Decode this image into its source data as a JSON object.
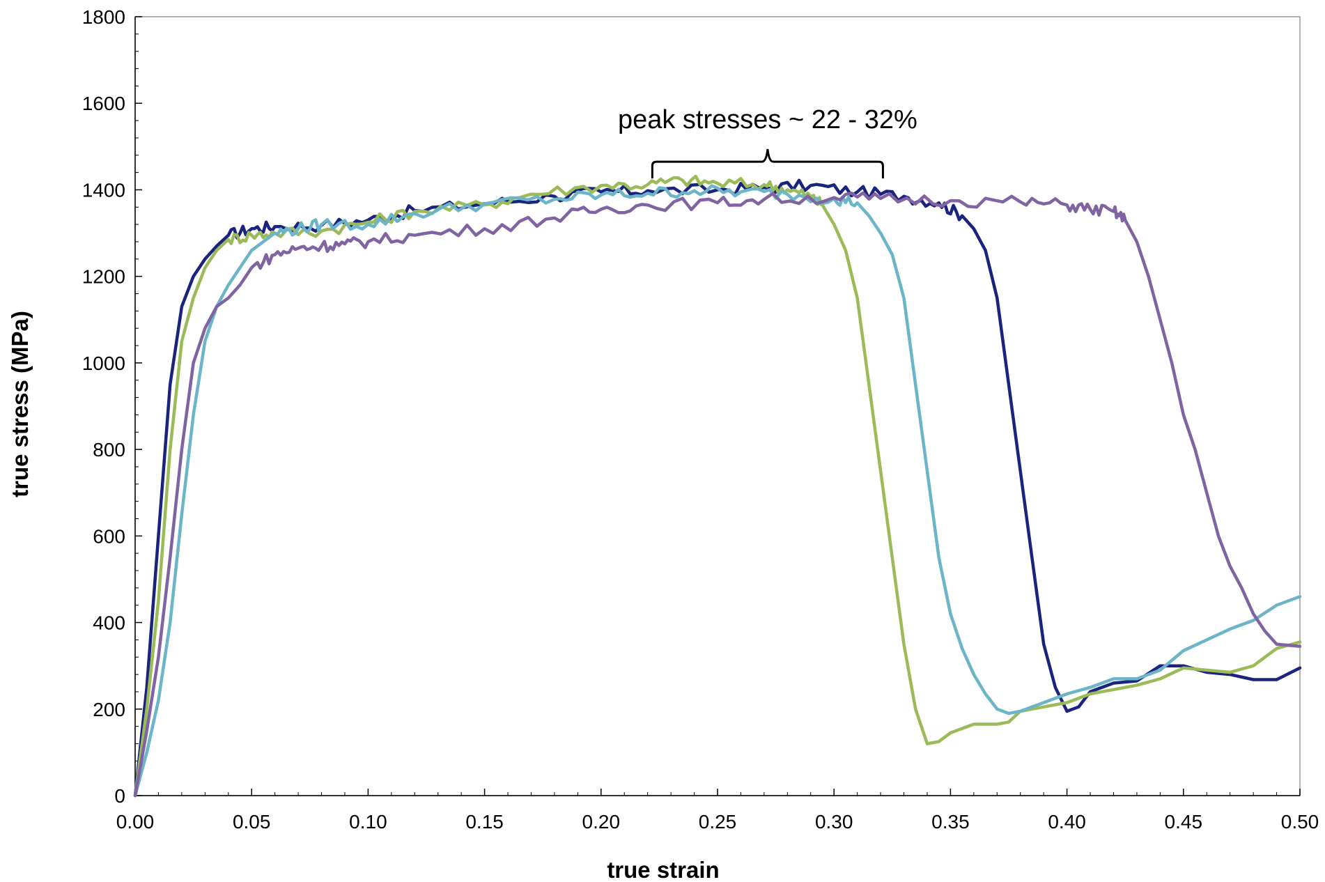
{
  "chart_data": {
    "type": "line",
    "xlabel": "true strain",
    "ylabel": "true stress (MPa)",
    "xlim": [
      0,
      0.5
    ],
    "ylim": [
      0,
      1800
    ],
    "x_ticks": [
      "0.00",
      "0.05",
      "0.10",
      "0.15",
      "0.20",
      "0.25",
      "0.30",
      "0.35",
      "0.40",
      "0.45",
      "0.50"
    ],
    "y_ticks": [
      "0",
      "200",
      "400",
      "600",
      "800",
      "1000",
      "1200",
      "1400",
      "1600",
      "1800"
    ],
    "grid": false,
    "legend": "none",
    "annotation": {
      "text": "peak stresses  ~ 22 - 32%",
      "bracket_x_range": [
        0.222,
        0.321
      ],
      "bracket_y": 1465
    },
    "series": [
      {
        "color": "#1a237e",
        "points": [
          [
            0,
            0
          ],
          [
            0.005,
            250
          ],
          [
            0.01,
            600
          ],
          [
            0.015,
            950
          ],
          [
            0.02,
            1130
          ],
          [
            0.025,
            1200
          ],
          [
            0.03,
            1240
          ],
          [
            0.035,
            1270
          ],
          [
            0.04,
            1295
          ],
          [
            0.05,
            1310
          ],
          [
            0.06,
            1315
          ],
          [
            0.08,
            1318
          ],
          [
            0.1,
            1330
          ],
          [
            0.12,
            1352
          ],
          [
            0.15,
            1368
          ],
          [
            0.18,
            1385
          ],
          [
            0.2,
            1395
          ],
          [
            0.22,
            1398
          ],
          [
            0.25,
            1400
          ],
          [
            0.27,
            1405
          ],
          [
            0.29,
            1410
          ],
          [
            0.31,
            1395
          ],
          [
            0.33,
            1385
          ],
          [
            0.345,
            1370
          ],
          [
            0.355,
            1340
          ],
          [
            0.36,
            1310
          ],
          [
            0.365,
            1260
          ],
          [
            0.37,
            1150
          ],
          [
            0.375,
            950
          ],
          [
            0.38,
            750
          ],
          [
            0.385,
            550
          ],
          [
            0.39,
            350
          ],
          [
            0.395,
            250
          ],
          [
            0.4,
            195
          ],
          [
            0.405,
            205
          ],
          [
            0.41,
            240
          ],
          [
            0.42,
            260
          ],
          [
            0.43,
            265
          ],
          [
            0.44,
            300
          ],
          [
            0.45,
            300
          ],
          [
            0.46,
            285
          ],
          [
            0.47,
            280
          ],
          [
            0.48,
            268
          ],
          [
            0.49,
            268
          ],
          [
            0.5,
            295
          ]
        ]
      },
      {
        "color": "#9bbb59",
        "points": [
          [
            0,
            0
          ],
          [
            0.005,
            200
          ],
          [
            0.01,
            450
          ],
          [
            0.015,
            800
          ],
          [
            0.02,
            1050
          ],
          [
            0.025,
            1150
          ],
          [
            0.03,
            1220
          ],
          [
            0.035,
            1260
          ],
          [
            0.04,
            1285
          ],
          [
            0.05,
            1295
          ],
          [
            0.06,
            1300
          ],
          [
            0.08,
            1305
          ],
          [
            0.1,
            1325
          ],
          [
            0.12,
            1350
          ],
          [
            0.15,
            1365
          ],
          [
            0.17,
            1390
          ],
          [
            0.2,
            1410
          ],
          [
            0.22,
            1412
          ],
          [
            0.235,
            1422
          ],
          [
            0.25,
            1415
          ],
          [
            0.27,
            1412
          ],
          [
            0.28,
            1400
          ],
          [
            0.29,
            1385
          ],
          [
            0.295,
            1365
          ],
          [
            0.3,
            1320
          ],
          [
            0.305,
            1260
          ],
          [
            0.31,
            1150
          ],
          [
            0.315,
            950
          ],
          [
            0.32,
            750
          ],
          [
            0.325,
            550
          ],
          [
            0.33,
            350
          ],
          [
            0.335,
            200
          ],
          [
            0.34,
            120
          ],
          [
            0.345,
            125
          ],
          [
            0.35,
            145
          ],
          [
            0.36,
            165
          ],
          [
            0.37,
            165
          ],
          [
            0.375,
            170
          ],
          [
            0.38,
            195
          ],
          [
            0.39,
            205
          ],
          [
            0.4,
            215
          ],
          [
            0.41,
            235
          ],
          [
            0.42,
            245
          ],
          [
            0.43,
            255
          ],
          [
            0.44,
            270
          ],
          [
            0.45,
            295
          ],
          [
            0.46,
            290
          ],
          [
            0.47,
            285
          ],
          [
            0.48,
            300
          ],
          [
            0.49,
            340
          ],
          [
            0.5,
            355
          ]
        ]
      },
      {
        "color": "#6cb4c8",
        "points": [
          [
            0,
            0
          ],
          [
            0.005,
            100
          ],
          [
            0.01,
            220
          ],
          [
            0.015,
            400
          ],
          [
            0.02,
            650
          ],
          [
            0.025,
            880
          ],
          [
            0.03,
            1050
          ],
          [
            0.035,
            1130
          ],
          [
            0.04,
            1180
          ],
          [
            0.045,
            1220
          ],
          [
            0.05,
            1260
          ],
          [
            0.06,
            1300
          ],
          [
            0.07,
            1310
          ],
          [
            0.08,
            1320
          ],
          [
            0.1,
            1320
          ],
          [
            0.12,
            1345
          ],
          [
            0.15,
            1368
          ],
          [
            0.18,
            1378
          ],
          [
            0.2,
            1388
          ],
          [
            0.22,
            1392
          ],
          [
            0.24,
            1398
          ],
          [
            0.26,
            1395
          ],
          [
            0.28,
            1390
          ],
          [
            0.3,
            1380
          ],
          [
            0.31,
            1370
          ],
          [
            0.315,
            1340
          ],
          [
            0.32,
            1300
          ],
          [
            0.325,
            1250
          ],
          [
            0.33,
            1150
          ],
          [
            0.335,
            950
          ],
          [
            0.34,
            750
          ],
          [
            0.345,
            550
          ],
          [
            0.35,
            420
          ],
          [
            0.355,
            340
          ],
          [
            0.36,
            280
          ],
          [
            0.365,
            235
          ],
          [
            0.37,
            200
          ],
          [
            0.375,
            190
          ],
          [
            0.38,
            195
          ],
          [
            0.39,
            215
          ],
          [
            0.4,
            235
          ],
          [
            0.41,
            250
          ],
          [
            0.42,
            270
          ],
          [
            0.43,
            270
          ],
          [
            0.44,
            290
          ],
          [
            0.45,
            335
          ],
          [
            0.46,
            360
          ],
          [
            0.47,
            385
          ],
          [
            0.48,
            405
          ],
          [
            0.49,
            440
          ],
          [
            0.5,
            460
          ]
        ]
      },
      {
        "color": "#8064a2",
        "points": [
          [
            0,
            0
          ],
          [
            0.005,
            150
          ],
          [
            0.01,
            320
          ],
          [
            0.015,
            550
          ],
          [
            0.02,
            800
          ],
          [
            0.025,
            1000
          ],
          [
            0.03,
            1080
          ],
          [
            0.035,
            1130
          ],
          [
            0.04,
            1150
          ],
          [
            0.045,
            1180
          ],
          [
            0.05,
            1220
          ],
          [
            0.06,
            1250
          ],
          [
            0.07,
            1265
          ],
          [
            0.08,
            1270
          ],
          [
            0.09,
            1275
          ],
          [
            0.1,
            1280
          ],
          [
            0.12,
            1295
          ],
          [
            0.15,
            1310
          ],
          [
            0.18,
            1335
          ],
          [
            0.2,
            1355
          ],
          [
            0.22,
            1365
          ],
          [
            0.25,
            1370
          ],
          [
            0.27,
            1378
          ],
          [
            0.3,
            1382
          ],
          [
            0.32,
            1380
          ],
          [
            0.35,
            1375
          ],
          [
            0.38,
            1372
          ],
          [
            0.4,
            1365
          ],
          [
            0.41,
            1355
          ],
          [
            0.42,
            1350
          ],
          [
            0.425,
            1330
          ],
          [
            0.43,
            1280
          ],
          [
            0.435,
            1200
          ],
          [
            0.44,
            1100
          ],
          [
            0.445,
            1000
          ],
          [
            0.45,
            880
          ],
          [
            0.455,
            800
          ],
          [
            0.46,
            700
          ],
          [
            0.465,
            600
          ],
          [
            0.47,
            530
          ],
          [
            0.475,
            480
          ],
          [
            0.48,
            420
          ],
          [
            0.485,
            380
          ],
          [
            0.49,
            350
          ],
          [
            0.5,
            345
          ]
        ]
      }
    ]
  }
}
